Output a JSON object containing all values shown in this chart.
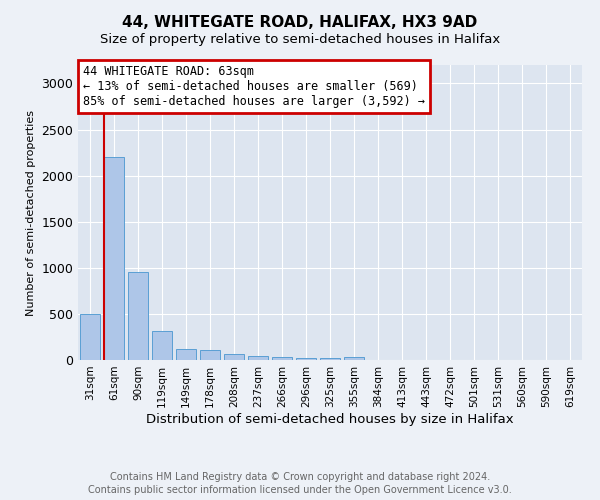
{
  "title_line1": "44, WHITEGATE ROAD, HALIFAX, HX3 9AD",
  "title_line2": "Size of property relative to semi-detached houses in Halifax",
  "xlabel": "Distribution of semi-detached houses by size in Halifax",
  "ylabel": "Number of semi-detached properties",
  "footnote1": "Contains HM Land Registry data © Crown copyright and database right 2024.",
  "footnote2": "Contains public sector information licensed under the Open Government Licence v3.0.",
  "annotation_line1": "44 WHITEGATE ROAD: 63sqm",
  "annotation_line2": "← 13% of semi-detached houses are smaller (569)",
  "annotation_line3": "85% of semi-detached houses are larger (3,592) →",
  "bar_labels": [
    "31sqm",
    "61sqm",
    "90sqm",
    "119sqm",
    "149sqm",
    "178sqm",
    "208sqm",
    "237sqm",
    "266sqm",
    "296sqm",
    "325sqm",
    "355sqm",
    "384sqm",
    "413sqm",
    "443sqm",
    "472sqm",
    "501sqm",
    "531sqm",
    "560sqm",
    "590sqm",
    "619sqm"
  ],
  "bar_values": [
    500,
    2200,
    950,
    310,
    115,
    110,
    65,
    45,
    30,
    25,
    20,
    35,
    0,
    0,
    0,
    0,
    0,
    0,
    0,
    0,
    0
  ],
  "bar_color": "#aec6e8",
  "bar_edge_color": "#5a9fd4",
  "highlight_line_color": "#cc0000",
  "annotation_box_edge_color": "#cc0000",
  "ylim": [
    0,
    3200
  ],
  "yticks": [
    0,
    500,
    1000,
    1500,
    2000,
    2500,
    3000
  ],
  "bg_color": "#edf1f7",
  "plot_bg_color": "#dde5f0"
}
